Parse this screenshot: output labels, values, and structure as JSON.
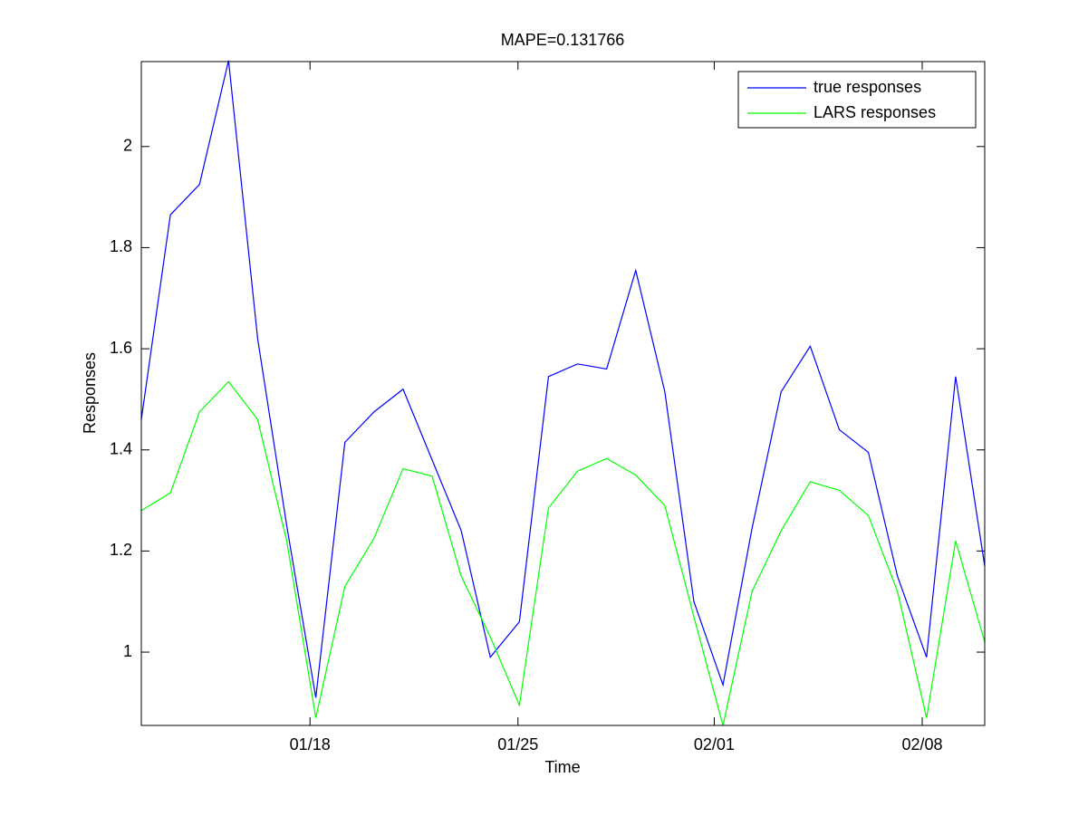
{
  "chart_data": {
    "type": "line",
    "title": "MAPE=0.131766",
    "xlabel": "Time",
    "ylabel": "Responses",
    "x": [
      0,
      1,
      2,
      3,
      4,
      5,
      6,
      7,
      8,
      9,
      10,
      11,
      12,
      13,
      14,
      15,
      16,
      17,
      18,
      19,
      20,
      21,
      22,
      23,
      24,
      25,
      26,
      27,
      28,
      29
    ],
    "series": [
      {
        "name": "true responses",
        "color": "#0000ff",
        "values": [
          1.46,
          1.865,
          1.925,
          2.17,
          1.62,
          1.25,
          0.91,
          1.415,
          1.475,
          1.52,
          1.38,
          1.24,
          0.99,
          1.06,
          1.545,
          1.57,
          1.56,
          1.755,
          1.515,
          1.1,
          0.935,
          1.245,
          1.515,
          1.605,
          1.44,
          1.395,
          1.15,
          0.99,
          1.545,
          1.17
        ]
      },
      {
        "name": "LARS responses",
        "color": "#00ff00",
        "values": [
          1.28,
          1.315,
          1.475,
          1.535,
          1.46,
          1.22,
          0.87,
          1.13,
          1.225,
          1.363,
          1.348,
          1.15,
          1.03,
          0.895,
          1.285,
          1.358,
          1.383,
          1.35,
          1.29,
          1.07,
          0.855,
          1.12,
          1.24,
          1.337,
          1.32,
          1.27,
          1.12,
          0.87,
          1.22,
          1.02
        ]
      }
    ],
    "xlim": [
      0,
      29
    ],
    "xticks": [
      {
        "value": 5.8,
        "label": "01/18"
      },
      {
        "value": 12.95,
        "label": "01/25"
      },
      {
        "value": 19.7,
        "label": "02/01"
      },
      {
        "value": 26.85,
        "label": "02/08"
      }
    ],
    "ylim": [
      0.855,
      2.168
    ],
    "yticks": [
      1,
      1.2,
      1.4,
      1.6,
      1.8,
      2
    ],
    "grid": false,
    "legend": "northeast"
  }
}
